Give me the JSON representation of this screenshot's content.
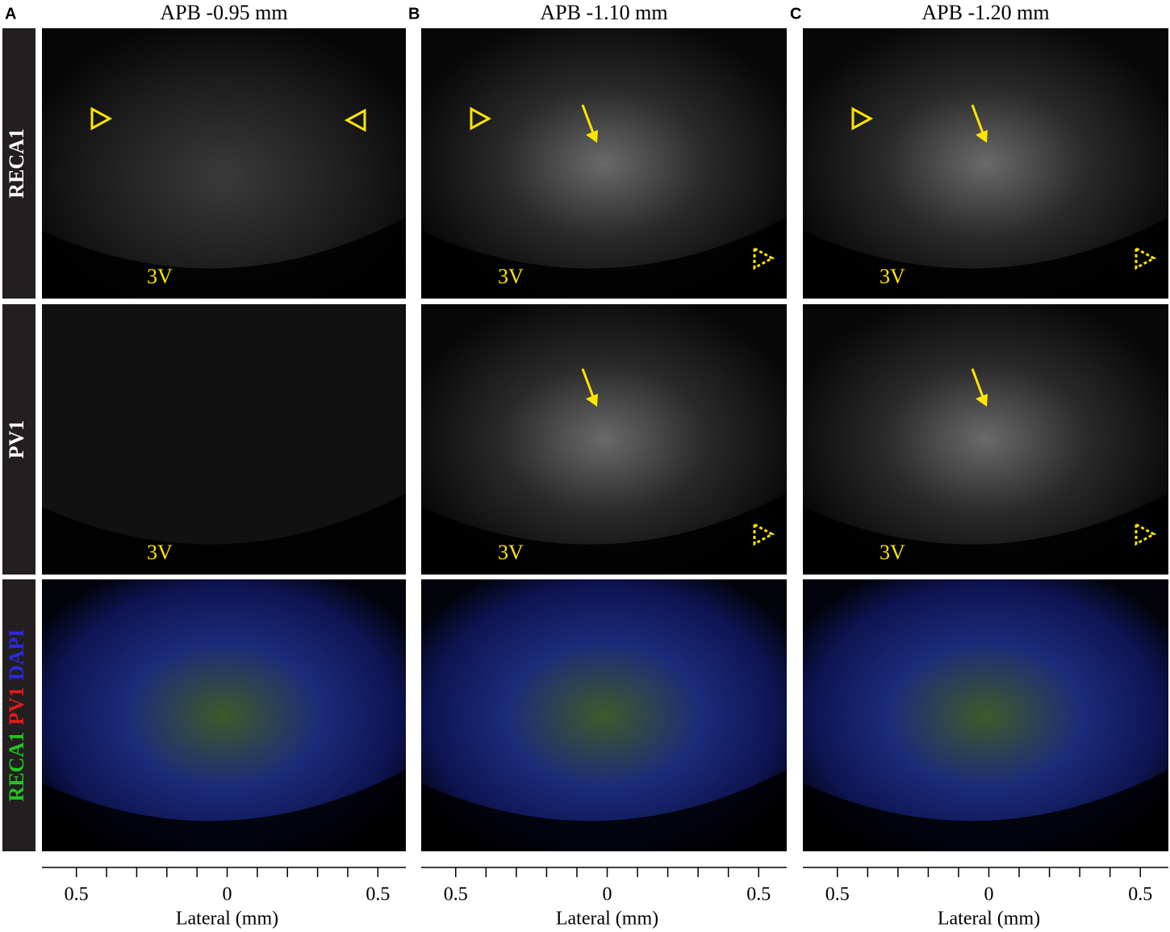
{
  "panels": [
    {
      "letter": "A",
      "title": "APB -0.95 mm",
      "axis": {
        "ticks": [
          "0.5",
          "0",
          "0.5"
        ],
        "label": "Lateral (mm)"
      }
    },
    {
      "letter": "B",
      "title": "APB -1.10 mm",
      "axis": {
        "ticks": [
          "0.5",
          "0",
          "0.5"
        ],
        "label": "Lateral (mm)"
      }
    },
    {
      "letter": "C",
      "title": "APB -1.20 mm",
      "axis": {
        "ticks": [
          "0.5",
          "0",
          "0.5"
        ],
        "label": "Lateral (mm)"
      }
    }
  ],
  "rows": [
    {
      "label": "RECA1"
    },
    {
      "label": "PV1"
    },
    {
      "label_parts": [
        "RECA1",
        "PV1",
        "DAPI"
      ]
    }
  ],
  "annotations": {
    "third_ventricle": "3V"
  }
}
